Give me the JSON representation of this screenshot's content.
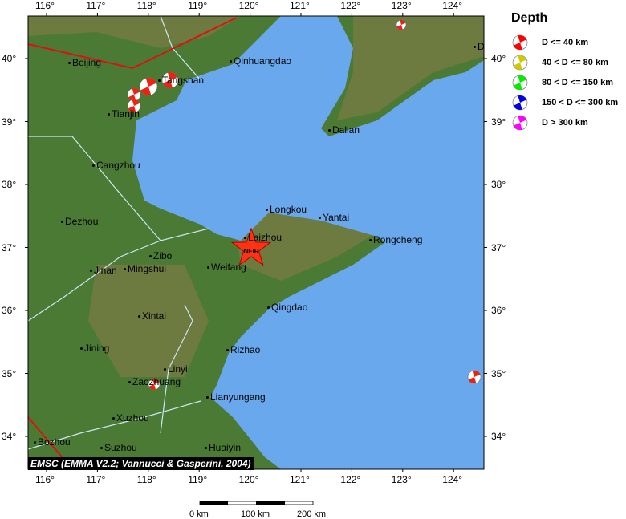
{
  "map": {
    "lon_ticks": [
      "116°",
      "117°",
      "118°",
      "119°",
      "120°",
      "121°",
      "122°",
      "123°",
      "124°"
    ],
    "lat_ticks": [
      "40°",
      "39°",
      "38°",
      "37°",
      "36°",
      "35°",
      "34°"
    ],
    "cities": [
      "Beijing",
      "Qinhuangdao",
      "Tangshan",
      "Tianjin",
      "Dalian",
      "Cangzhou",
      "Longkou",
      "Yantai",
      "Dezhou",
      "Laizhou",
      "Rongcheng",
      "Zibo",
      "Jinan",
      "Mingshui",
      "Weifang",
      "Qingdao",
      "Xintai",
      "Jining",
      "Rizhao",
      "Linyi",
      "Zaozhuang",
      "Lianyungang",
      "Xuzhou",
      "Bozhou",
      "Suzhou",
      "Huaiyin",
      "D"
    ],
    "epicenter_label": "NEIR",
    "colors": {
      "land": "#4a7a34",
      "sea": "#6aa8ee",
      "fault": "#e01010",
      "river": "#cfe6f5",
      "event": "#ee2211"
    }
  },
  "legend": {
    "title": "Depth",
    "items": [
      {
        "label": "D <= 40 km",
        "color": "#ff0000"
      },
      {
        "label": "40 < D <= 80 km",
        "color": "#cccc00"
      },
      {
        "label": "80 < D <= 150 km",
        "color": "#00ee00"
      },
      {
        "label": "150 < D <= 300 km",
        "color": "#0000ee"
      },
      {
        "label": "D > 300 km",
        "color": "#ff00ff"
      }
    ]
  },
  "credit": "EMSC (EMMA V2.2; Vannucci & Gasperini, 2004)",
  "scale": {
    "labels": [
      "0 km",
      "100 km",
      "200 km"
    ]
  }
}
